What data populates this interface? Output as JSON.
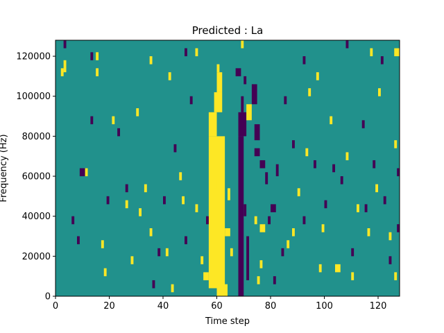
{
  "chart_data": {
    "type": "heatmap",
    "title": "Predicted : La",
    "xlabel": "Time step",
    "ylabel": "Frequency (Hz)",
    "xlim": [
      0,
      128
    ],
    "ylim": [
      0,
      128000
    ],
    "x_ticks": [
      0,
      20,
      40,
      60,
      80,
      100,
      120
    ],
    "y_ticks": [
      0,
      20000,
      40000,
      60000,
      80000,
      100000,
      120000
    ],
    "x_tick_labels": [
      "0",
      "20",
      "40",
      "60",
      "80",
      "100",
      "120"
    ],
    "y_tick_labels": [
      "0",
      "20000",
      "40000",
      "60000",
      "80000",
      "100000",
      "120000"
    ],
    "grid": false,
    "legend": "none",
    "colormap": {
      "low": "#440154",
      "mid": "#21918c",
      "high": "#fde725"
    },
    "background_value": 0,
    "value_levels": {
      "low": -1,
      "mid": 0,
      "high": 1
    },
    "rows": 128,
    "cols": 128,
    "cells_note_columns": "each entry: [time_step_start, time_step_end, freq_start_Hz, freq_end_Hz, value]",
    "cells": [
      [
        57,
        63,
        4000,
        80000,
        1
      ],
      [
        57,
        60,
        80000,
        92000,
        1
      ],
      [
        59,
        62,
        92000,
        102000,
        1
      ],
      [
        60,
        62,
        102000,
        112000,
        1
      ],
      [
        60,
        61,
        112000,
        116000,
        1
      ],
      [
        60,
        64,
        0,
        6000,
        1
      ],
      [
        63,
        65,
        30000,
        34000,
        1
      ],
      [
        64,
        65,
        48000,
        54000,
        1
      ],
      [
        59,
        60,
        54000,
        58000,
        1
      ],
      [
        55,
        57,
        8000,
        12000,
        1
      ],
      [
        68,
        70,
        0,
        80000,
        -1
      ],
      [
        68,
        71,
        80000,
        92000,
        -1
      ],
      [
        69,
        70,
        92000,
        100000,
        -1
      ],
      [
        70,
        71,
        106000,
        110000,
        -1
      ],
      [
        67,
        69,
        110000,
        114000,
        -1
      ],
      [
        71,
        72,
        8000,
        30000,
        -1
      ],
      [
        70,
        71,
        40000,
        46000,
        -1
      ],
      [
        74,
        76,
        70000,
        74000,
        -1
      ],
      [
        74,
        76,
        78000,
        86000,
        -1
      ],
      [
        73,
        75,
        96000,
        106000,
        -1
      ],
      [
        71,
        73,
        88000,
        96000,
        1
      ],
      [
        76,
        78,
        32000,
        36000,
        1
      ],
      [
        74,
        75,
        36000,
        40000,
        1
      ],
      [
        75,
        76,
        6000,
        10000,
        1
      ],
      [
        76,
        78,
        64000,
        68000,
        -1
      ],
      [
        78,
        79,
        56000,
        62000,
        -1
      ],
      [
        80,
        82,
        42000,
        46000,
        -1
      ],
      [
        82,
        83,
        60000,
        66000,
        -1
      ],
      [
        79,
        80,
        36000,
        40000,
        -1
      ],
      [
        84,
        85,
        20000,
        24000,
        -1
      ],
      [
        2,
        3,
        110000,
        114000,
        1
      ],
      [
        3,
        4,
        112000,
        118000,
        1
      ],
      [
        9,
        11,
        60000,
        64000,
        -1
      ],
      [
        11,
        12,
        60000,
        64000,
        1
      ],
      [
        13,
        14,
        86000,
        90000,
        -1
      ],
      [
        15,
        16,
        110000,
        114000,
        1
      ],
      [
        17,
        18,
        24000,
        28000,
        1
      ],
      [
        18,
        19,
        10000,
        14000,
        1
      ],
      [
        21,
        22,
        86000,
        90000,
        1
      ],
      [
        23,
        24,
        80000,
        84000,
        -1
      ],
      [
        26,
        27,
        44000,
        48000,
        1
      ],
      [
        28,
        29,
        16000,
        20000,
        1
      ],
      [
        30,
        31,
        90000,
        94000,
        1
      ],
      [
        33,
        34,
        52000,
        56000,
        1
      ],
      [
        35,
        36,
        30000,
        34000,
        1
      ],
      [
        36,
        37,
        4000,
        8000,
        -1
      ],
      [
        38,
        39,
        20000,
        24000,
        -1
      ],
      [
        40,
        41,
        46000,
        50000,
        -1
      ],
      [
        42,
        43,
        108000,
        112000,
        1
      ],
      [
        44,
        45,
        72000,
        76000,
        -1
      ],
      [
        46,
        47,
        58000,
        62000,
        1
      ],
      [
        48,
        49,
        26000,
        30000,
        -1
      ],
      [
        50,
        51,
        96000,
        100000,
        -1
      ],
      [
        52,
        53,
        42000,
        46000,
        1
      ],
      [
        54,
        55,
        16000,
        20000,
        1
      ],
      [
        56,
        57,
        36000,
        40000,
        -1
      ],
      [
        85,
        86,
        96000,
        100000,
        -1
      ],
      [
        86,
        87,
        24000,
        28000,
        1
      ],
      [
        88,
        89,
        74000,
        78000,
        -1
      ],
      [
        90,
        91,
        50000,
        54000,
        1
      ],
      [
        92,
        93,
        36000,
        40000,
        -1
      ],
      [
        94,
        95,
        100000,
        104000,
        1
      ],
      [
        96,
        97,
        64000,
        68000,
        -1
      ],
      [
        98,
        99,
        12000,
        16000,
        1
      ],
      [
        100,
        101,
        44000,
        48000,
        -1
      ],
      [
        102,
        103,
        86000,
        90000,
        1
      ],
      [
        104,
        106,
        12000,
        16000,
        1
      ],
      [
        106,
        107,
        56000,
        60000,
        -1
      ],
      [
        108,
        109,
        68000,
        72000,
        1
      ],
      [
        110,
        111,
        20000,
        24000,
        -1
      ],
      [
        112,
        113,
        42000,
        46000,
        1
      ],
      [
        114,
        115,
        84000,
        88000,
        -1
      ],
      [
        116,
        117,
        30000,
        34000,
        1
      ],
      [
        118,
        119,
        64000,
        68000,
        -1
      ],
      [
        120,
        121,
        100000,
        104000,
        1
      ],
      [
        122,
        123,
        46000,
        50000,
        -1
      ],
      [
        124,
        125,
        28000,
        32000,
        1
      ],
      [
        126,
        128,
        120000,
        124000,
        1
      ],
      [
        127,
        128,
        32000,
        36000,
        -1
      ],
      [
        126,
        127,
        8000,
        12000,
        1
      ],
      [
        3,
        4,
        124000,
        128000,
        -1
      ],
      [
        13,
        14,
        118000,
        122000,
        -1
      ],
      [
        15,
        16,
        118000,
        122000,
        1
      ],
      [
        35,
        36,
        116000,
        120000,
        1
      ],
      [
        48,
        49,
        120000,
        124000,
        -1
      ],
      [
        52,
        53,
        120000,
        124000,
        1
      ],
      [
        69,
        70,
        124000,
        128000,
        1
      ],
      [
        92,
        93,
        116000,
        120000,
        -1
      ],
      [
        97,
        98,
        108000,
        112000,
        1
      ],
      [
        108,
        109,
        124000,
        128000,
        -1
      ],
      [
        117,
        118,
        120000,
        124000,
        1
      ],
      [
        121,
        122,
        116000,
        120000,
        -1
      ],
      [
        6,
        7,
        36000,
        40000,
        -1
      ],
      [
        8,
        9,
        26000,
        30000,
        -1
      ],
      [
        19,
        20,
        46000,
        50000,
        -1
      ],
      [
        26,
        27,
        52000,
        56000,
        -1
      ],
      [
        31,
        32,
        40000,
        44000,
        1
      ],
      [
        41,
        42,
        20000,
        24000,
        1
      ],
      [
        43,
        44,
        2000,
        6000,
        1
      ],
      [
        47,
        48,
        46000,
        50000,
        1
      ],
      [
        65,
        66,
        20000,
        24000,
        1
      ],
      [
        76,
        77,
        14000,
        18000,
        1
      ],
      [
        81,
        82,
        6000,
        10000,
        -1
      ],
      [
        88,
        89,
        30000,
        34000,
        1
      ],
      [
        93,
        94,
        70000,
        74000,
        1
      ],
      [
        99,
        100,
        32000,
        36000,
        1
      ],
      [
        103,
        104,
        62000,
        66000,
        -1
      ],
      [
        110,
        111,
        8000,
        12000,
        1
      ],
      [
        115,
        116,
        42000,
        46000,
        -1
      ],
      [
        119,
        120,
        52000,
        56000,
        1
      ],
      [
        124,
        125,
        16000,
        20000,
        -1
      ],
      [
        126,
        127,
        74000,
        78000,
        1
      ],
      [
        127,
        128,
        60000,
        64000,
        -1
      ]
    ]
  }
}
